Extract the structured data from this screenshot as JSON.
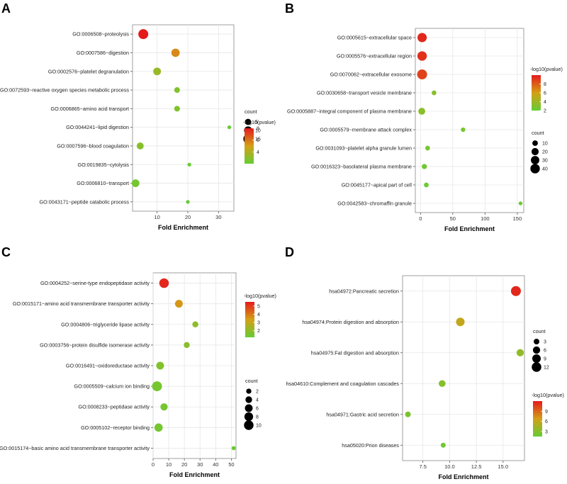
{
  "chart_data": [
    {
      "panel": "A",
      "type": "scatter",
      "xlabel": "Fold Enrichment",
      "xlim": [
        2,
        35
      ],
      "xticks": [
        10,
        20,
        30
      ],
      "terms": [
        "GO:0006508~proteolysis",
        "GO:0007586~digestion",
        "GO:0002576~platelet degranulation",
        "GO:0072593~reactive oxygen species metabolic process",
        "GO:0006865~amino acid transport",
        "GO:0044241~lipid digestion",
        "GO:0007596~blood coagulation",
        "GO:0019835~cytolysis",
        "GO:0006810~transport",
        "GO:0043171~peptide catabolic process"
      ],
      "x": [
        5.5,
        16,
        10,
        16.5,
        16.5,
        33.5,
        4.5,
        20.5,
        3,
        20
      ],
      "count": [
        17,
        11,
        9,
        4,
        4,
        1,
        7,
        1,
        9,
        1
      ],
      "pvalue_log": [
        8.0,
        5.5,
        3.3,
        2.7,
        2.7,
        2.0,
        2.9,
        2.0,
        2.4,
        2.0
      ],
      "color_range": [
        2,
        8
      ],
      "count_legend": {
        "title": "count",
        "values": [
          5,
          10,
          15
        ]
      },
      "color_legend": {
        "title": "-log10(pvalue)",
        "ticks": [
          4,
          6,
          8
        ]
      }
    },
    {
      "panel": "B",
      "type": "scatter",
      "xlabel": "Fold Enrichment",
      "xlim": [
        -8,
        160
      ],
      "xticks": [
        0,
        50,
        100,
        150
      ],
      "terms": [
        "GO:0005615~extracellular space",
        "GO:0005576~extracellular region",
        "GO:0070062~extracellular exosome",
        "GO:0030658~transport vesicle membrane",
        "GO:0005887~integral component of plasma membrane",
        "GO:0005579~membrane attack complex",
        "GO:0031093~platelet alpha granule lumen",
        "GO:0016323~basolateral plasma membrane",
        "GO:0045177~apical part of cell",
        "GO:0042583~chromaffin granule"
      ],
      "x": [
        2.5,
        2.5,
        2.5,
        21,
        2,
        66,
        11,
        6,
        9,
        155
      ],
      "count": [
        38,
        40,
        45,
        6,
        18,
        5,
        6,
        8,
        6,
        3
      ],
      "pvalue_log": [
        9.6,
        9.3,
        8.8,
        3.2,
        3.3,
        2.6,
        2.5,
        2.4,
        2.2,
        2.2
      ],
      "color_range": [
        2,
        10
      ],
      "count_legend": {
        "title": "count",
        "values": [
          10,
          20,
          30,
          40
        ]
      },
      "color_legend": {
        "title": "-log10(pvalue)",
        "ticks": [
          2,
          4,
          6,
          8
        ]
      }
    },
    {
      "panel": "C",
      "type": "scatter",
      "xlabel": "Fold Enrichment",
      "xlim": [
        0,
        53
      ],
      "xticks": [
        0,
        10,
        20,
        30,
        40,
        50
      ],
      "terms": [
        "GO:0004252~serine-type endopeptidase activity",
        "GO:0015171~amino acid transmembrane transporter activity",
        "GO:0004806~triglyceride lipase activity",
        "GO:0003756~protein disulfide isomerase activity",
        "GO:0016491~oxidoreductase activity",
        "GO:0005509~calcium ion binding",
        "GO:0008233~peptidase activity",
        "GO:0005102~receptor binding",
        "GO:0015174~basic amino acid transmembrane transporter activity"
      ],
      "x": [
        7,
        16.5,
        27,
        21.5,
        4.5,
        2.5,
        7,
        3.5,
        51.5
      ],
      "count": [
        10,
        6,
        3,
        3,
        6,
        11,
        5,
        7,
        1
      ],
      "pvalue_log": [
        5.3,
        3.5,
        2.0,
        1.9,
        1.7,
        1.5,
        1.5,
        1.5,
        1.3
      ],
      "color_range": [
        1.2,
        5.5
      ],
      "count_legend": {
        "title": "count",
        "values": [
          2,
          4,
          6,
          8,
          10
        ]
      },
      "color_legend": {
        "title": "-log10(pvalue)",
        "ticks": [
          2,
          3,
          4,
          5
        ]
      }
    },
    {
      "panel": "D",
      "type": "scatter",
      "xlabel": "Fold Enrichment",
      "xlim": [
        5.6,
        17.0
      ],
      "xticks": [
        7.5,
        10.0,
        12.5,
        15.0
      ],
      "xtick_labels": [
        "7.5",
        "10.0",
        "12.5",
        "15.0"
      ],
      "terms": [
        "hsa04972:Pancreatic secretion",
        "hsa04974:Protein digestion and absorption",
        "hsa04975:Fat digestion and absorption",
        "hsa04610:Complement and coagulation cascades",
        "hsa04971:Gastric acid secretion",
        "hsa05020:Prion diseases"
      ],
      "x": [
        16.2,
        11.0,
        16.6,
        9.3,
        6.1,
        9.4
      ],
      "count": [
        13,
        9,
        6,
        5,
        3,
        2
      ],
      "pvalue_log": [
        11.5,
        6.0,
        3.5,
        3.0,
        2.5,
        2.0
      ],
      "color_range": [
        1.5,
        12
      ],
      "count_legend": {
        "title": "count",
        "values": [
          3,
          6,
          9,
          12
        ]
      },
      "color_legend": {
        "title": "-log10(pvalue)",
        "ticks": [
          3,
          6,
          9
        ]
      }
    }
  ],
  "panels": [
    "A",
    "B",
    "C",
    "D"
  ]
}
